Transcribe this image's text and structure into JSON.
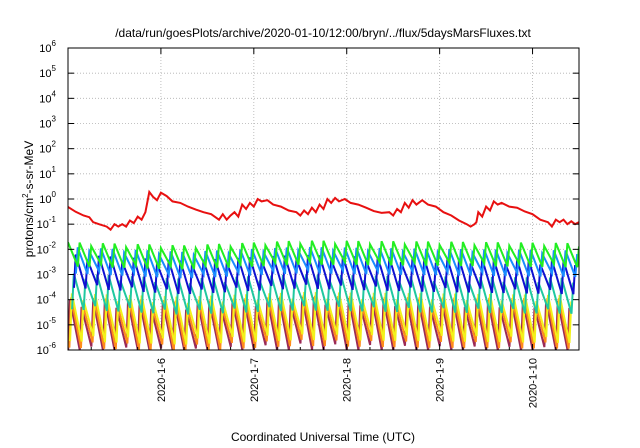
{
  "chart_data": {
    "type": "line",
    "title": "/data/run/goesPlots/archive/2020-01-10/12:00/bryn/../flux/5daysMarsFluxes.txt",
    "xlabel": "Coordinated Universal Time (UTC)",
    "ylabel": "protons/cm2-s-sr-MeV",
    "ylabel_parts": {
      "pre": "protons/cm",
      "sup": "2",
      "post": "-s-sr-MeV"
    },
    "yscale": "log",
    "ylim": [
      1e-06,
      1000000.0
    ],
    "xlim": [
      "2020-01-05 00:00",
      "2020-01-10 12:00"
    ],
    "grid": true,
    "x_ticks": [
      {
        "label": "2020-1-6",
        "x": "2020-01-06 00:00"
      },
      {
        "label": "2020-1-7",
        "x": "2020-01-07 00:00"
      },
      {
        "label": "2020-1-8",
        "x": "2020-01-08 00:00"
      },
      {
        "label": "2020-1-9",
        "x": "2020-01-09 00:00"
      },
      {
        "label": "2020-1-10",
        "x": "2020-01-10 00:00"
      }
    ],
    "y_ticks": [
      {
        "base": "10",
        "exp": "-6",
        "value": 1e-06
      },
      {
        "base": "10",
        "exp": "-5",
        "value": 1e-05
      },
      {
        "base": "10",
        "exp": "-4",
        "value": 0.0001
      },
      {
        "base": "10",
        "exp": "-3",
        "value": 0.001
      },
      {
        "base": "10",
        "exp": "-2",
        "value": 0.01
      },
      {
        "base": "10",
        "exp": "-1",
        "value": 0.1
      },
      {
        "base": "10",
        "exp": "0",
        "value": 1
      },
      {
        "base": "10",
        "exp": "1",
        "value": 10
      },
      {
        "base": "10",
        "exp": "2",
        "value": 100
      },
      {
        "base": "10",
        "exp": "3",
        "value": 1000
      },
      {
        "base": "10",
        "exp": "4",
        "value": 10000
      },
      {
        "base": "10",
        "exp": "5",
        "value": 100000
      },
      {
        "base": "10",
        "exp": "6",
        "value": 1000000
      }
    ],
    "series": [
      {
        "color": "#e81010",
        "width": 2,
        "points": [
          [
            "2020-01-05 00:00",
            0.48
          ],
          [
            "2020-01-05 02:00",
            0.31
          ],
          [
            "2020-01-05 04:00",
            0.22
          ],
          [
            "2020-01-05 05:30",
            0.19
          ],
          [
            "2020-01-05 06:30",
            0.12
          ],
          [
            "2020-01-05 08:00",
            0.1
          ],
          [
            "2020-01-05 10:00",
            0.08
          ],
          [
            "2020-01-05 11:00",
            0.06
          ],
          [
            "2020-01-05 12:00",
            0.1
          ],
          [
            "2020-01-05 13:00",
            0.08
          ],
          [
            "2020-01-05 14:00",
            0.1
          ],
          [
            "2020-01-05 15:00",
            0.08
          ],
          [
            "2020-01-05 16:00",
            0.14
          ],
          [
            "2020-01-05 17:00",
            0.11
          ],
          [
            "2020-01-05 18:00",
            0.2
          ],
          [
            "2020-01-05 19:00",
            0.15
          ],
          [
            "2020-01-05 20:00",
            0.3
          ],
          [
            "2020-01-05 21:00",
            1.9
          ],
          [
            "2020-01-05 22:00",
            1.2
          ],
          [
            "2020-01-05 23:00",
            0.9
          ],
          [
            "2020-01-06 00:00",
            1.8
          ],
          [
            "2020-01-06 01:30",
            1.3
          ],
          [
            "2020-01-06 03:00",
            0.8
          ],
          [
            "2020-01-06 05:00",
            0.7
          ],
          [
            "2020-01-06 07:00",
            0.5
          ],
          [
            "2020-01-06 09:00",
            0.38
          ],
          [
            "2020-01-06 11:00",
            0.3
          ],
          [
            "2020-01-06 13:00",
            0.25
          ],
          [
            "2020-01-06 15:00",
            0.15
          ],
          [
            "2020-01-06 16:00",
            0.25
          ],
          [
            "2020-01-06 17:00",
            0.15
          ],
          [
            "2020-01-06 18:00",
            0.22
          ],
          [
            "2020-01-06 19:00",
            0.3
          ],
          [
            "2020-01-06 20:00",
            0.2
          ],
          [
            "2020-01-06 21:00",
            0.6
          ],
          [
            "2020-01-06 22:00",
            0.4
          ],
          [
            "2020-01-06 23:00",
            0.7
          ],
          [
            "2020-01-07 00:00",
            0.5
          ],
          [
            "2020-01-07 01:00",
            1.0
          ],
          [
            "2020-01-07 02:00",
            0.8
          ],
          [
            "2020-01-07 03:30",
            0.9
          ],
          [
            "2020-01-07 05:00",
            0.6
          ],
          [
            "2020-01-07 07:00",
            0.5
          ],
          [
            "2020-01-07 09:00",
            0.35
          ],
          [
            "2020-01-07 11:00",
            0.3
          ],
          [
            "2020-01-07 12:00",
            0.22
          ],
          [
            "2020-01-07 13:00",
            0.35
          ],
          [
            "2020-01-07 14:00",
            0.25
          ],
          [
            "2020-01-07 15:00",
            0.45
          ],
          [
            "2020-01-07 16:00",
            0.3
          ],
          [
            "2020-01-07 17:00",
            0.6
          ],
          [
            "2020-01-07 18:00",
            0.4
          ],
          [
            "2020-01-07 19:00",
            1.0
          ],
          [
            "2020-01-07 20:00",
            0.7
          ],
          [
            "2020-01-07 21:00",
            1.1
          ],
          [
            "2020-01-07 22:00",
            0.8
          ],
          [
            "2020-01-07 23:30",
            1.0
          ],
          [
            "2020-01-08 01:00",
            0.7
          ],
          [
            "2020-01-08 03:00",
            0.6
          ],
          [
            "2020-01-08 05:00",
            0.45
          ],
          [
            "2020-01-08 07:00",
            0.33
          ],
          [
            "2020-01-08 09:00",
            0.28
          ],
          [
            "2020-01-08 11:00",
            0.3
          ],
          [
            "2020-01-08 12:00",
            0.22
          ],
          [
            "2020-01-08 13:00",
            0.4
          ],
          [
            "2020-01-08 14:00",
            0.3
          ],
          [
            "2020-01-08 15:00",
            0.7
          ],
          [
            "2020-01-08 16:00",
            0.45
          ],
          [
            "2020-01-08 17:00",
            0.9
          ],
          [
            "2020-01-08 18:00",
            0.6
          ],
          [
            "2020-01-08 19:30",
            0.9
          ],
          [
            "2020-01-08 21:00",
            0.6
          ],
          [
            "2020-01-08 23:00",
            0.5
          ],
          [
            "2020-01-09 01:00",
            0.3
          ],
          [
            "2020-01-09 03:00",
            0.22
          ],
          [
            "2020-01-09 05:00",
            0.14
          ],
          [
            "2020-01-09 07:00",
            0.1
          ],
          [
            "2020-01-09 08:00",
            0.08
          ],
          [
            "2020-01-09 09:00",
            0.1
          ],
          [
            "2020-01-09 09:30",
            0.12
          ],
          [
            "2020-01-09 10:00",
            0.3
          ],
          [
            "2020-01-09 11:00",
            0.2
          ],
          [
            "2020-01-09 12:00",
            0.5
          ],
          [
            "2020-01-09 13:00",
            0.35
          ],
          [
            "2020-01-09 14:00",
            0.8
          ],
          [
            "2020-01-09 15:00",
            0.6
          ],
          [
            "2020-01-09 16:00",
            0.7
          ],
          [
            "2020-01-09 18:00",
            0.5
          ],
          [
            "2020-01-09 20:00",
            0.45
          ],
          [
            "2020-01-09 22:00",
            0.32
          ],
          [
            "2020-01-10 00:00",
            0.25
          ],
          [
            "2020-01-10 02:00",
            0.15
          ],
          [
            "2020-01-10 04:00",
            0.12
          ],
          [
            "2020-01-10 05:00",
            0.08
          ],
          [
            "2020-01-10 06:00",
            0.15
          ],
          [
            "2020-01-10 07:00",
            0.12
          ],
          [
            "2020-01-10 08:00",
            0.15
          ],
          [
            "2020-01-10 09:00",
            0.1
          ],
          [
            "2020-01-10 10:00",
            0.13
          ],
          [
            "2020-01-10 11:00",
            0.1
          ],
          [
            "2020-01-10 12:00",
            0.12
          ]
        ]
      },
      {
        "color": "#22ee22",
        "width": 2,
        "anchors": [
          [
            "2020-01-05 00:00",
            0.006
          ],
          [
            "2020-01-06 06:00",
            0.0045
          ],
          [
            "2020-01-07 12:00",
            0.007
          ],
          [
            "2020-01-08 18:00",
            0.0065
          ],
          [
            "2020-01-10 12:00",
            0.0055
          ]
        ],
        "swing": 0.5,
        "step_hours": 3,
        "phase_hours": 0
      },
      {
        "color": "#1a8cff",
        "width": 2,
        "anchors": [
          [
            "2020-01-05 00:00",
            0.0035
          ],
          [
            "2020-01-06 06:00",
            0.0022
          ],
          [
            "2020-01-07 12:00",
            0.0035
          ],
          [
            "2020-01-08 18:00",
            0.003
          ],
          [
            "2020-01-10 12:00",
            0.0025
          ]
        ],
        "swing": 0.55,
        "step_hours": 3,
        "phase_hours": 0.5
      },
      {
        "color": "#1010d0",
        "width": 2,
        "anchors": [
          [
            "2020-01-05 00:00",
            0.0013
          ],
          [
            "2020-01-06 06:00",
            0.0007
          ],
          [
            "2020-01-07 12:00",
            0.0012
          ],
          [
            "2020-01-08 18:00",
            0.0009
          ],
          [
            "2020-01-10 12:00",
            0.0007
          ]
        ],
        "swing": 0.7,
        "step_hours": 3,
        "phase_hours": 1
      },
      {
        "color": "#20c8a0",
        "width": 2,
        "anchors": [
          [
            "2020-01-05 00:00",
            0.0002
          ],
          [
            "2020-01-06 06:00",
            0.00012
          ],
          [
            "2020-01-07 12:00",
            0.00018
          ],
          [
            "2020-01-08 18:00",
            0.00015
          ],
          [
            "2020-01-10 12:00",
            0.00013
          ]
        ],
        "swing": 0.75,
        "step_hours": 3,
        "phase_hours": 1.5
      },
      {
        "color": "#f2f21a",
        "width": 2,
        "anchors": [
          [
            "2020-01-05 00:00",
            1.8e-05
          ],
          [
            "2020-01-06 06:00",
            1.3e-05
          ],
          [
            "2020-01-07 12:00",
            2e-05
          ],
          [
            "2020-01-08 18:00",
            1.8e-05
          ],
          [
            "2020-01-10 12:00",
            1.5e-05
          ]
        ],
        "swing": 1.0,
        "step_hours": 3,
        "phase_hours": 2
      },
      {
        "color": "#ff8c1a",
        "width": 2,
        "anchors": [
          [
            "2020-01-05 00:00",
            1.1e-05
          ],
          [
            "2020-01-06 06:00",
            8e-06
          ],
          [
            "2020-01-07 12:00",
            1.3e-05
          ],
          [
            "2020-01-08 18:00",
            1.1e-05
          ],
          [
            "2020-01-10 12:00",
            1e-05
          ]
        ],
        "swing": 1.05,
        "step_hours": 3,
        "phase_hours": 2.2
      },
      {
        "color": "#9b2a55",
        "width": 2,
        "anchors": [
          [
            "2020-01-05 00:00",
            8e-06
          ],
          [
            "2020-01-06 06:00",
            6e-06
          ],
          [
            "2020-01-07 12:00",
            1e-05
          ],
          [
            "2020-01-08 18:00",
            8e-06
          ],
          [
            "2020-01-10 12:00",
            7e-06
          ]
        ],
        "swing": 1.1,
        "step_hours": 3,
        "phase_hours": 2.5
      }
    ]
  }
}
